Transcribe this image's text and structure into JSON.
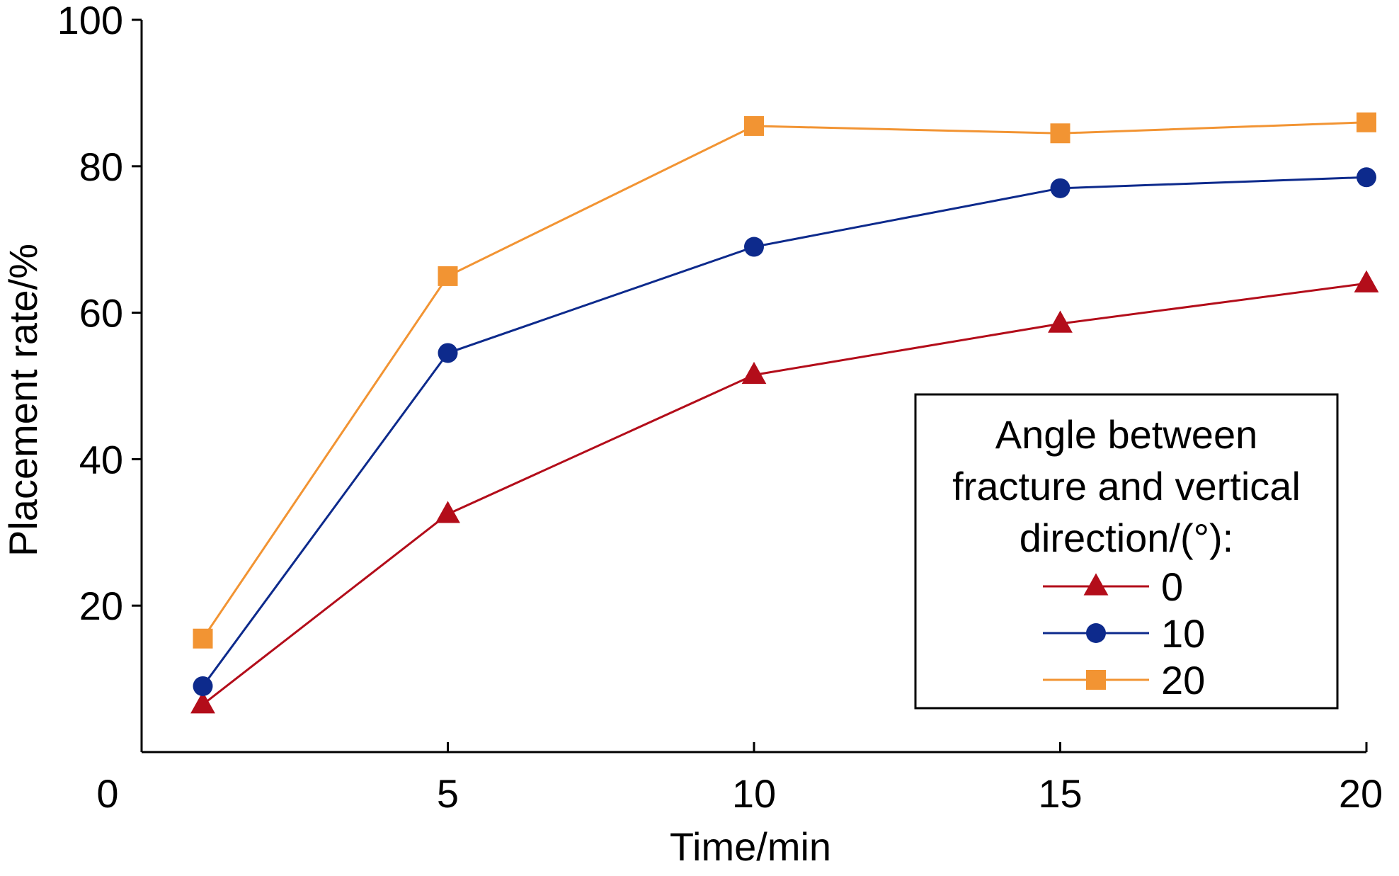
{
  "chart_data": {
    "type": "line",
    "title": "",
    "xlabel": "Time/min",
    "ylabel": "Placement rate/%",
    "origin_label": "0",
    "xlim": [
      0,
      20
    ],
    "ylim": [
      0,
      100
    ],
    "x_ticks": [
      5,
      10,
      15,
      20
    ],
    "y_ticks": [
      20,
      40,
      60,
      80,
      100
    ],
    "grid": false,
    "legend": {
      "position": "bottom-right",
      "title_lines": [
        "Angle between",
        "fracture and vertical",
        "direction/(°):"
      ]
    },
    "series": [
      {
        "name": "0",
        "marker": "triangle",
        "color": "#b30d1a",
        "x": [
          1,
          5,
          10,
          15,
          20
        ],
        "y": [
          6.5,
          32.5,
          51.5,
          58.5,
          64
        ]
      },
      {
        "name": "10",
        "marker": "circle",
        "color": "#0d2a8c",
        "x": [
          1,
          5,
          10,
          15,
          20
        ],
        "y": [
          9,
          54.5,
          69,
          77,
          78.5
        ]
      },
      {
        "name": "20",
        "marker": "square",
        "color": "#f29433",
        "x": [
          1,
          5,
          10,
          15,
          20
        ],
        "y": [
          15.5,
          65,
          85.5,
          84.5,
          86
        ]
      }
    ]
  }
}
